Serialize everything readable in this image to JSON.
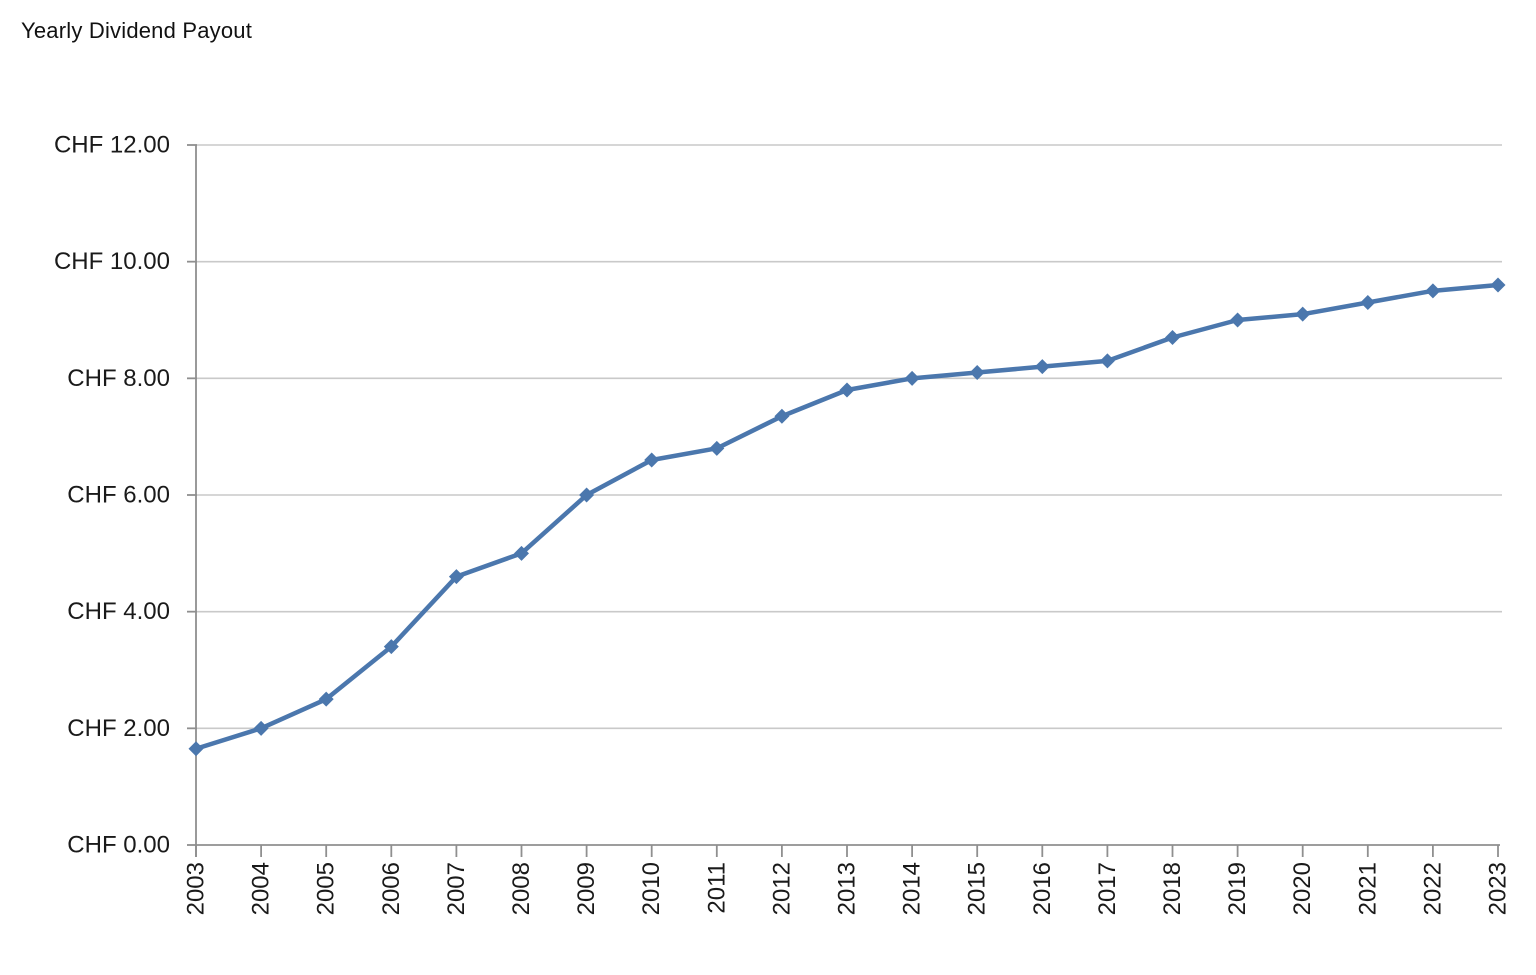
{
  "chart_data": {
    "type": "line",
    "title": "Yearly Dividend Payout",
    "categories": [
      "2003",
      "2004",
      "2005",
      "2006",
      "2007",
      "2008",
      "2009",
      "2010",
      "2011",
      "2012",
      "2013",
      "2014",
      "2015",
      "2016",
      "2017",
      "2018",
      "2019",
      "2020",
      "2021",
      "2022",
      "2023"
    ],
    "values": [
      1.65,
      2.0,
      2.5,
      3.4,
      4.6,
      5.0,
      6.0,
      6.6,
      6.8,
      7.35,
      7.8,
      8.0,
      8.1,
      8.2,
      8.3,
      8.7,
      9.0,
      9.1,
      9.3,
      9.5,
      9.6
    ],
    "xlabel": "",
    "ylabel": "",
    "ylim": [
      0,
      12
    ],
    "y_tick_step": 2,
    "y_tick_labels": [
      "CHF 0.00",
      "CHF 2.00",
      "CHF 4.00",
      "CHF 6.00",
      "CHF 8.00",
      "CHF 10.00",
      "CHF 12.00"
    ],
    "currency_prefix": "CHF",
    "grid": true,
    "legend": false,
    "marker": "diamond",
    "colors": {
      "line": "#4b77ad",
      "marker": "#4b77ad",
      "gridline": "#c9c9c9",
      "axis": "#8f8f8f",
      "tick_text": "#1a1a1a",
      "title_text": "#111111",
      "background": "#ffffff"
    }
  }
}
